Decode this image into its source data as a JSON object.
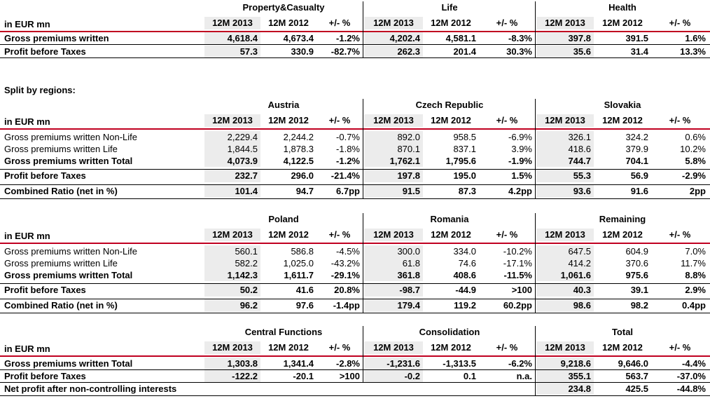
{
  "cols": {
    "y13": "12M 2013",
    "y12": "12M 2012",
    "chg": "+/- %"
  },
  "unit_label": "in EUR mn",
  "t1": {
    "groups": [
      "Property&Casualty",
      "Life",
      "Health"
    ],
    "rows": [
      {
        "label": "Gross premiums written",
        "v": [
          "4,618.4",
          "4,673.4",
          "-1.2%",
          "4,202.4",
          "4,581.1",
          "-8.3%",
          "397.8",
          "391.5",
          "1.6%"
        ]
      },
      {
        "label": "Profit before Taxes",
        "v": [
          "57.3",
          "330.9",
          "-82.7%",
          "262.3",
          "201.4",
          "30.3%",
          "35.6",
          "31.4",
          "13.3%"
        ]
      }
    ]
  },
  "split_title": "Split by regions:",
  "t2": {
    "groups": [
      "Austria",
      "Czech Republic",
      "Slovakia"
    ],
    "rows": [
      {
        "label": "Gross premiums written Non-Life",
        "v": [
          "2,229.4",
          "2,244.2",
          "-0.7%",
          "892.0",
          "958.5",
          "-6.9%",
          "326.1",
          "324.2",
          "0.6%"
        ]
      },
      {
        "label": "Gross premiums written Life",
        "v": [
          "1,844.5",
          "1,878.3",
          "-1.8%",
          "870.1",
          "837.1",
          "3.9%",
          "418.6",
          "379.9",
          "10.2%"
        ]
      },
      {
        "label": "Gross premiums written Total",
        "v": [
          "4,073.9",
          "4,122.5",
          "-1.2%",
          "1,762.1",
          "1,795.6",
          "-1.9%",
          "744.7",
          "704.1",
          "5.8%"
        ]
      },
      {
        "label": "Profit before Taxes",
        "v": [
          "232.7",
          "296.0",
          "-21.4%",
          "197.8",
          "195.0",
          "1.5%",
          "55.3",
          "56.9",
          "-2.9%"
        ]
      },
      {
        "label": "Combined Ratio (net in %)",
        "v": [
          "101.4",
          "94.7",
          "6.7pp",
          "91.5",
          "87.3",
          "4.2pp",
          "93.6",
          "91.6",
          "2pp"
        ]
      }
    ]
  },
  "t3": {
    "groups": [
      "Poland",
      "Romania",
      "Remaining"
    ],
    "rows": [
      {
        "label": "Gross premiums written Non-Life",
        "v": [
          "560.1",
          "586.8",
          "-4.5%",
          "300.0",
          "334.0",
          "-10.2%",
          "647.5",
          "604.9",
          "7.0%"
        ]
      },
      {
        "label": "Gross premiums written Life",
        "v": [
          "582.2",
          "1,025.0",
          "-43.2%",
          "61.8",
          "74.6",
          "-17.1%",
          "414.2",
          "370.6",
          "11.7%"
        ]
      },
      {
        "label": "Gross premiums written Total",
        "v": [
          "1,142.3",
          "1,611.7",
          "-29.1%",
          "361.8",
          "408.6",
          "-11.5%",
          "1,061.6",
          "975.6",
          "8.8%"
        ]
      },
      {
        "label": "Profit before Taxes",
        "v": [
          "50.2",
          "41.6",
          "20.8%",
          "-98.7",
          "-44.9",
          ">100",
          "40.3",
          "39.1",
          "2.9%"
        ]
      },
      {
        "label": "Combined Ratio (net in %)",
        "v": [
          "96.2",
          "97.6",
          "-1.4pp",
          "179.4",
          "119.2",
          "60.2pp",
          "98.6",
          "98.2",
          "0.4pp"
        ]
      }
    ]
  },
  "t4": {
    "groups": [
      "Central Functions",
      "Consolidation",
      "Total"
    ],
    "rows": [
      {
        "label": "Gross premiums written Total",
        "v": [
          "1,303.8",
          "1,341.4",
          "-2.8%",
          "-1,231.6",
          "-1,313.5",
          "-6.2%",
          "9,218.6",
          "9,646.0",
          "-4.4%"
        ]
      },
      {
        "label": "Profit before Taxes",
        "v": [
          "-122.2",
          "-20.1",
          ">100",
          "-0.2",
          "0.1",
          "n.a.",
          "355.1",
          "563.7",
          "-37.0%"
        ]
      },
      {
        "label": "Net profit after non-controlling interests",
        "v": [
          "",
          "",
          "",
          "",
          "",
          "",
          "234.8",
          "425.5",
          "-44.8%"
        ]
      }
    ]
  }
}
